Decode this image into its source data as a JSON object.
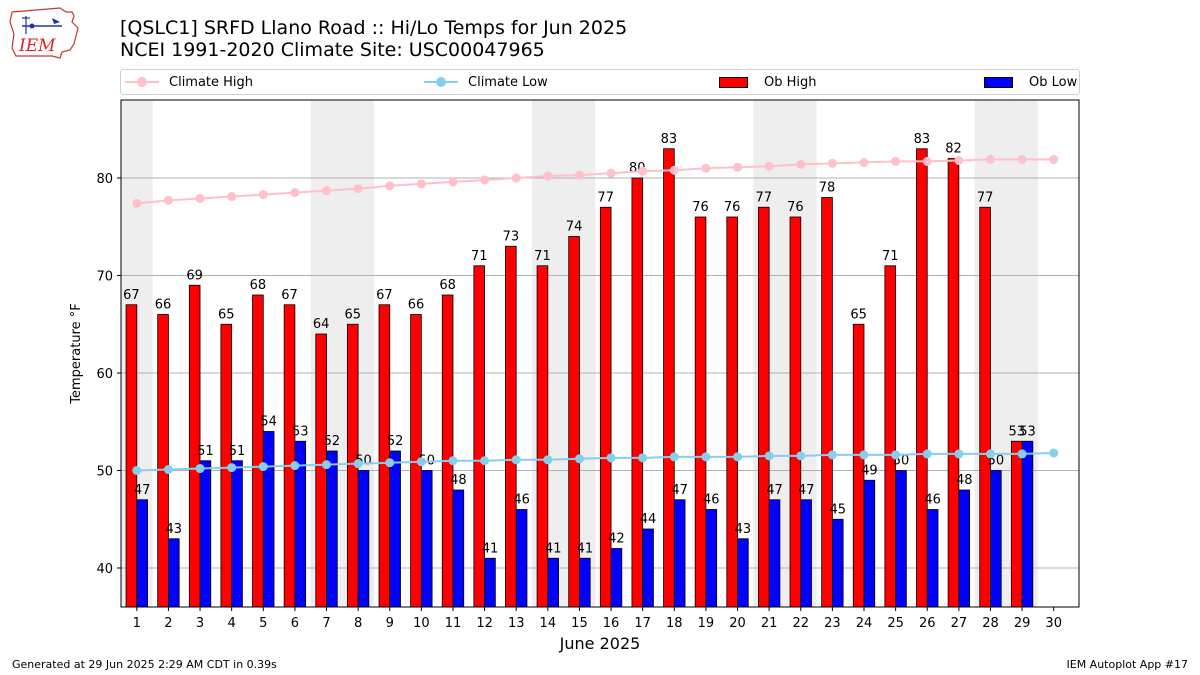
{
  "title_line1": "[QSLC1] SRFD Llano Road :: Hi/Lo Temps for Jun 2025",
  "title_line2": "NCEI 1991-2020 Climate Site: USC00047965",
  "logo_text": "IEM",
  "footer_left": "Generated at 29 Jun 2025 2:29 AM CDT in 0.39s",
  "footer_right": "IEM Autoplot App #17",
  "colors": {
    "climate_high": "#ffc0cb",
    "climate_low": "#87ceeb",
    "ob_high": "#ff0000",
    "ob_low": "#0000ff",
    "weekend_shade": "#eeeeee",
    "grid": "#b0b0b0"
  },
  "legend": [
    {
      "label": "Climate High",
      "kind": "line",
      "color": "#ffc0cb"
    },
    {
      "label": "Climate Low",
      "kind": "line",
      "color": "#87ceeb"
    },
    {
      "label": "Ob High",
      "kind": "box",
      "color": "#ff0000"
    },
    {
      "label": "Ob Low",
      "kind": "box",
      "color": "#0000ff"
    }
  ],
  "chart_data": {
    "type": "bar",
    "xlabel": "June 2025",
    "ylabel": "Temperature °F",
    "ylim": [
      36,
      88
    ],
    "yticks": [
      40,
      50,
      60,
      70,
      80
    ],
    "xticks": [
      1,
      2,
      3,
      4,
      5,
      6,
      7,
      8,
      9,
      10,
      11,
      12,
      13,
      14,
      15,
      16,
      17,
      18,
      19,
      20,
      21,
      22,
      23,
      24,
      25,
      26,
      27,
      28,
      29,
      30
    ],
    "grid": "horizontal",
    "legend_position": "top",
    "shaded_weekend_days": [
      1,
      7,
      8,
      14,
      15,
      21,
      22,
      28,
      29
    ],
    "days": [
      1,
      2,
      3,
      4,
      5,
      6,
      7,
      8,
      9,
      10,
      11,
      12,
      13,
      14,
      15,
      16,
      17,
      18,
      19,
      20,
      21,
      22,
      23,
      24,
      25,
      26,
      27,
      28,
      29
    ],
    "series": [
      {
        "name": "Ob High",
        "values": [
          67,
          66,
          69,
          65,
          68,
          67,
          64,
          65,
          67,
          66,
          68,
          71,
          73,
          71,
          74,
          77,
          80,
          83,
          76,
          76,
          77,
          76,
          78,
          65,
          71,
          83,
          82,
          77,
          53
        ]
      },
      {
        "name": "Ob Low",
        "values": [
          47,
          43,
          51,
          51,
          54,
          53,
          52,
          50,
          52,
          50,
          48,
          41,
          46,
          41,
          41,
          42,
          44,
          47,
          46,
          43,
          47,
          47,
          45,
          49,
          50,
          46,
          48,
          50,
          53
        ]
      },
      {
        "name": "Climate High",
        "days": [
          1,
          2,
          3,
          4,
          5,
          6,
          7,
          8,
          9,
          10,
          11,
          12,
          13,
          14,
          15,
          16,
          17,
          18,
          19,
          20,
          21,
          22,
          23,
          24,
          25,
          26,
          27,
          28,
          29,
          30
        ],
        "values": [
          77.4,
          77.7,
          77.9,
          78.1,
          78.3,
          78.5,
          78.7,
          78.9,
          79.2,
          79.4,
          79.6,
          79.8,
          80.0,
          80.2,
          80.3,
          80.5,
          80.7,
          80.8,
          81.0,
          81.1,
          81.2,
          81.4,
          81.5,
          81.6,
          81.7,
          81.7,
          81.8,
          81.9,
          81.9,
          81.9
        ]
      },
      {
        "name": "Climate Low",
        "days": [
          1,
          2,
          3,
          4,
          5,
          6,
          7,
          8,
          9,
          10,
          11,
          12,
          13,
          14,
          15,
          16,
          17,
          18,
          19,
          20,
          21,
          22,
          23,
          24,
          25,
          26,
          27,
          28,
          29,
          30
        ],
        "values": [
          50.0,
          50.1,
          50.2,
          50.3,
          50.4,
          50.5,
          50.6,
          50.7,
          50.8,
          50.9,
          51.0,
          51.0,
          51.1,
          51.1,
          51.2,
          51.3,
          51.3,
          51.4,
          51.4,
          51.4,
          51.5,
          51.5,
          51.6,
          51.6,
          51.6,
          51.7,
          51.7,
          51.7,
          51.7,
          51.8
        ]
      }
    ]
  }
}
